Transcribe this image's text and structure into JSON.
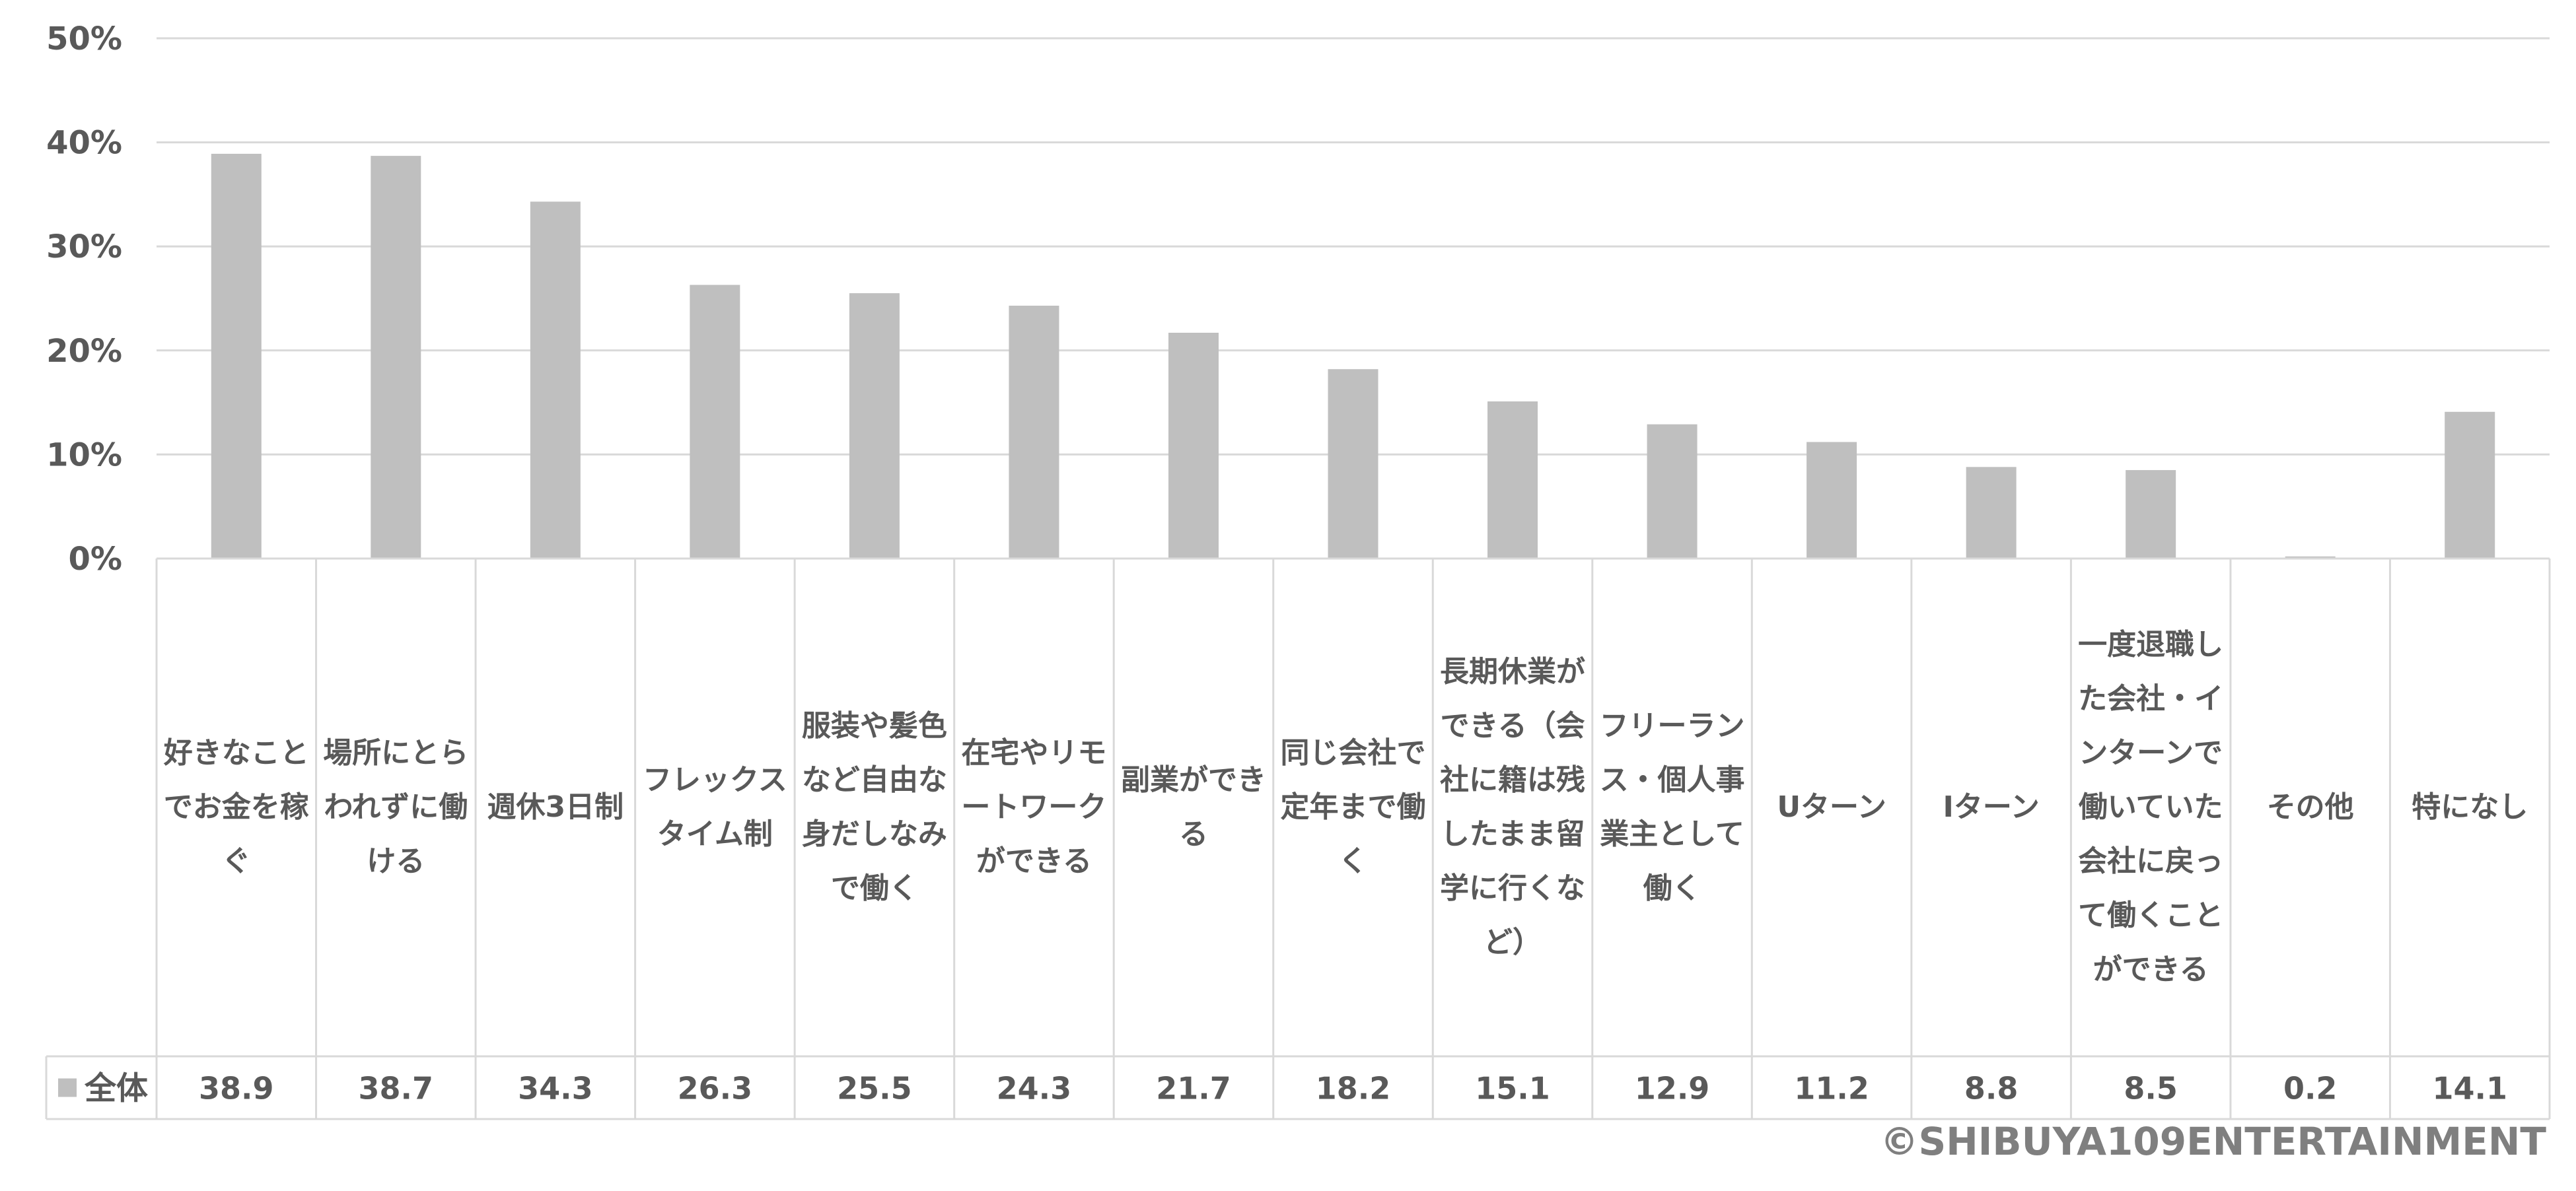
{
  "chart_data": {
    "type": "bar",
    "categories": [
      "好きなことでお金を稼ぐ",
      "場所にとらわれずに働ける",
      "週休3日制",
      "フレックスタイム制",
      "服装や髪色など自由な身だしなみで働く",
      "在宅やリモートワークができる",
      "副業ができる",
      "同じ会社で定年まで働く",
      "長期休業ができる（会社に籍は残したまま留学に行くなど）",
      "フリーランス・個人事業主として働く",
      "Uターン",
      "Iターン",
      "一度退職した会社・インターンで働いていた会社に戻って働くことができる",
      "その他",
      "特になし"
    ],
    "series": [
      {
        "name": "全体",
        "values": [
          38.9,
          38.7,
          34.3,
          26.3,
          25.5,
          24.3,
          21.7,
          18.2,
          15.1,
          12.9,
          11.2,
          8.8,
          8.5,
          0.2,
          14.1
        ]
      }
    ],
    "data_labels": [
      "38.9",
      "38.7",
      "34.3",
      "26.3",
      "25.5",
      "24.3",
      "21.7",
      "18.2",
      "15.1",
      "12.9",
      "11.2",
      "8.8",
      "8.5",
      "0.2",
      "14.1"
    ],
    "y_ticks": [
      "0%",
      "10%",
      "20%",
      "30%",
      "40%",
      "50%"
    ],
    "ylim": [
      0,
      50
    ],
    "grid": true,
    "legend": "data-table",
    "bar_color": "#bfbfbf",
    "title": "",
    "xlabel": "",
    "ylabel": ""
  },
  "footer": {
    "copyright": "©SHIBUYA109ENTERTAINMENT"
  }
}
